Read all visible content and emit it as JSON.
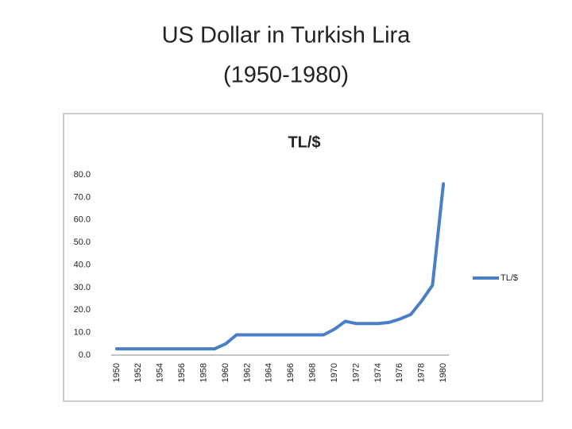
{
  "slide": {
    "title": "US Dollar in Turkish Lira",
    "subtitle": "(1950-1980)"
  },
  "chart_data": {
    "type": "line",
    "title": "TL/$",
    "categories": [
      "1950",
      null,
      "1952",
      null,
      "1954",
      null,
      "1956",
      null,
      "1958",
      null,
      "1960",
      null,
      "1962",
      null,
      "1964",
      null,
      "1966",
      null,
      "1968",
      null,
      "1970",
      null,
      "1972",
      null,
      "1974",
      null,
      "1976",
      null,
      "1978",
      null,
      "1980"
    ],
    "series": [
      {
        "name": "TL/$",
        "color": "#4a7ec6",
        "values": [
          2.8,
          2.8,
          2.8,
          2.8,
          2.8,
          2.8,
          2.8,
          2.8,
          2.8,
          2.8,
          5.0,
          9.0,
          9.0,
          9.0,
          9.0,
          9.0,
          9.0,
          9.0,
          9.0,
          9.0,
          11.5,
          15.0,
          14.0,
          14.0,
          14.0,
          14.5,
          16.0,
          18.0,
          24.0,
          31.0,
          76.0
        ]
      }
    ],
    "ylim": [
      0,
      80
    ],
    "yticks": [
      {
        "value": 0,
        "label": "0.0"
      },
      {
        "value": 10,
        "label": "10.0"
      },
      {
        "value": 20,
        "label": "20.0"
      },
      {
        "value": 30,
        "label": "30.0"
      },
      {
        "value": 40,
        "label": "40.0"
      },
      {
        "value": 50,
        "label": "50.0"
      },
      {
        "value": 60,
        "label": "60.0"
      },
      {
        "value": 70,
        "label": "70.0"
      },
      {
        "value": 80,
        "label": "80.0"
      }
    ],
    "grid": false,
    "legend": "right"
  }
}
